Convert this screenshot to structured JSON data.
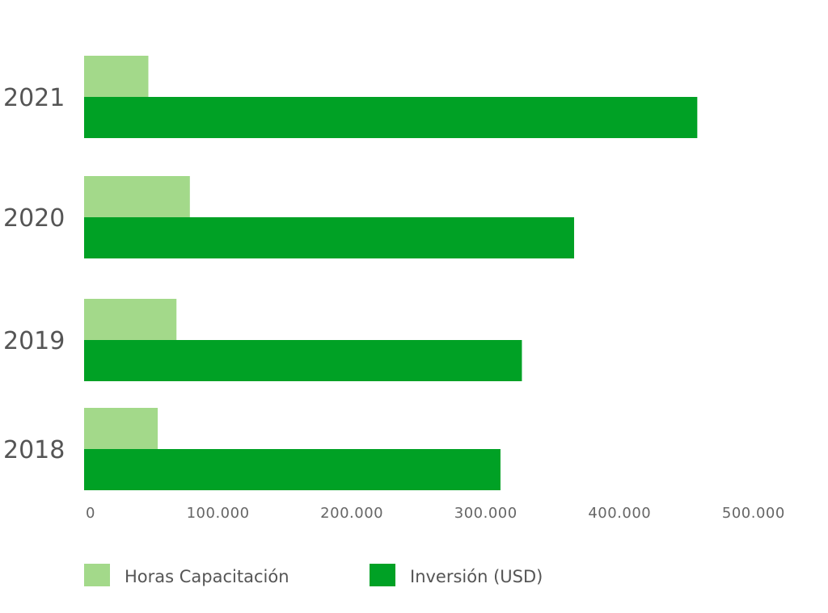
{
  "chart_data": {
    "type": "bar",
    "orientation": "horizontal",
    "categories": [
      "2021",
      "2020",
      "2019",
      "2018"
    ],
    "series": [
      {
        "name": "Horas Capacitación",
        "values": [
          48000,
          79000,
          69000,
          55000
        ],
        "color": "#a3d98a"
      },
      {
        "name": "Inversión (USD)",
        "values": [
          458000,
          366000,
          327000,
          311000
        ],
        "color": "#00a125"
      }
    ],
    "xlim": [
      0,
      520000
    ],
    "xticks": [
      {
        "value": 0,
        "label": "0"
      },
      {
        "value": 100000,
        "label": "100.000"
      },
      {
        "value": 200000,
        "label": "200.000"
      },
      {
        "value": 300000,
        "label": "300.000"
      },
      {
        "value": 400000,
        "label": "400.000"
      },
      {
        "value": 500000,
        "label": "500.000"
      }
    ],
    "grid": false,
    "legend_position": "bottom-left",
    "title": "",
    "xlabel": "",
    "ylabel": ""
  }
}
